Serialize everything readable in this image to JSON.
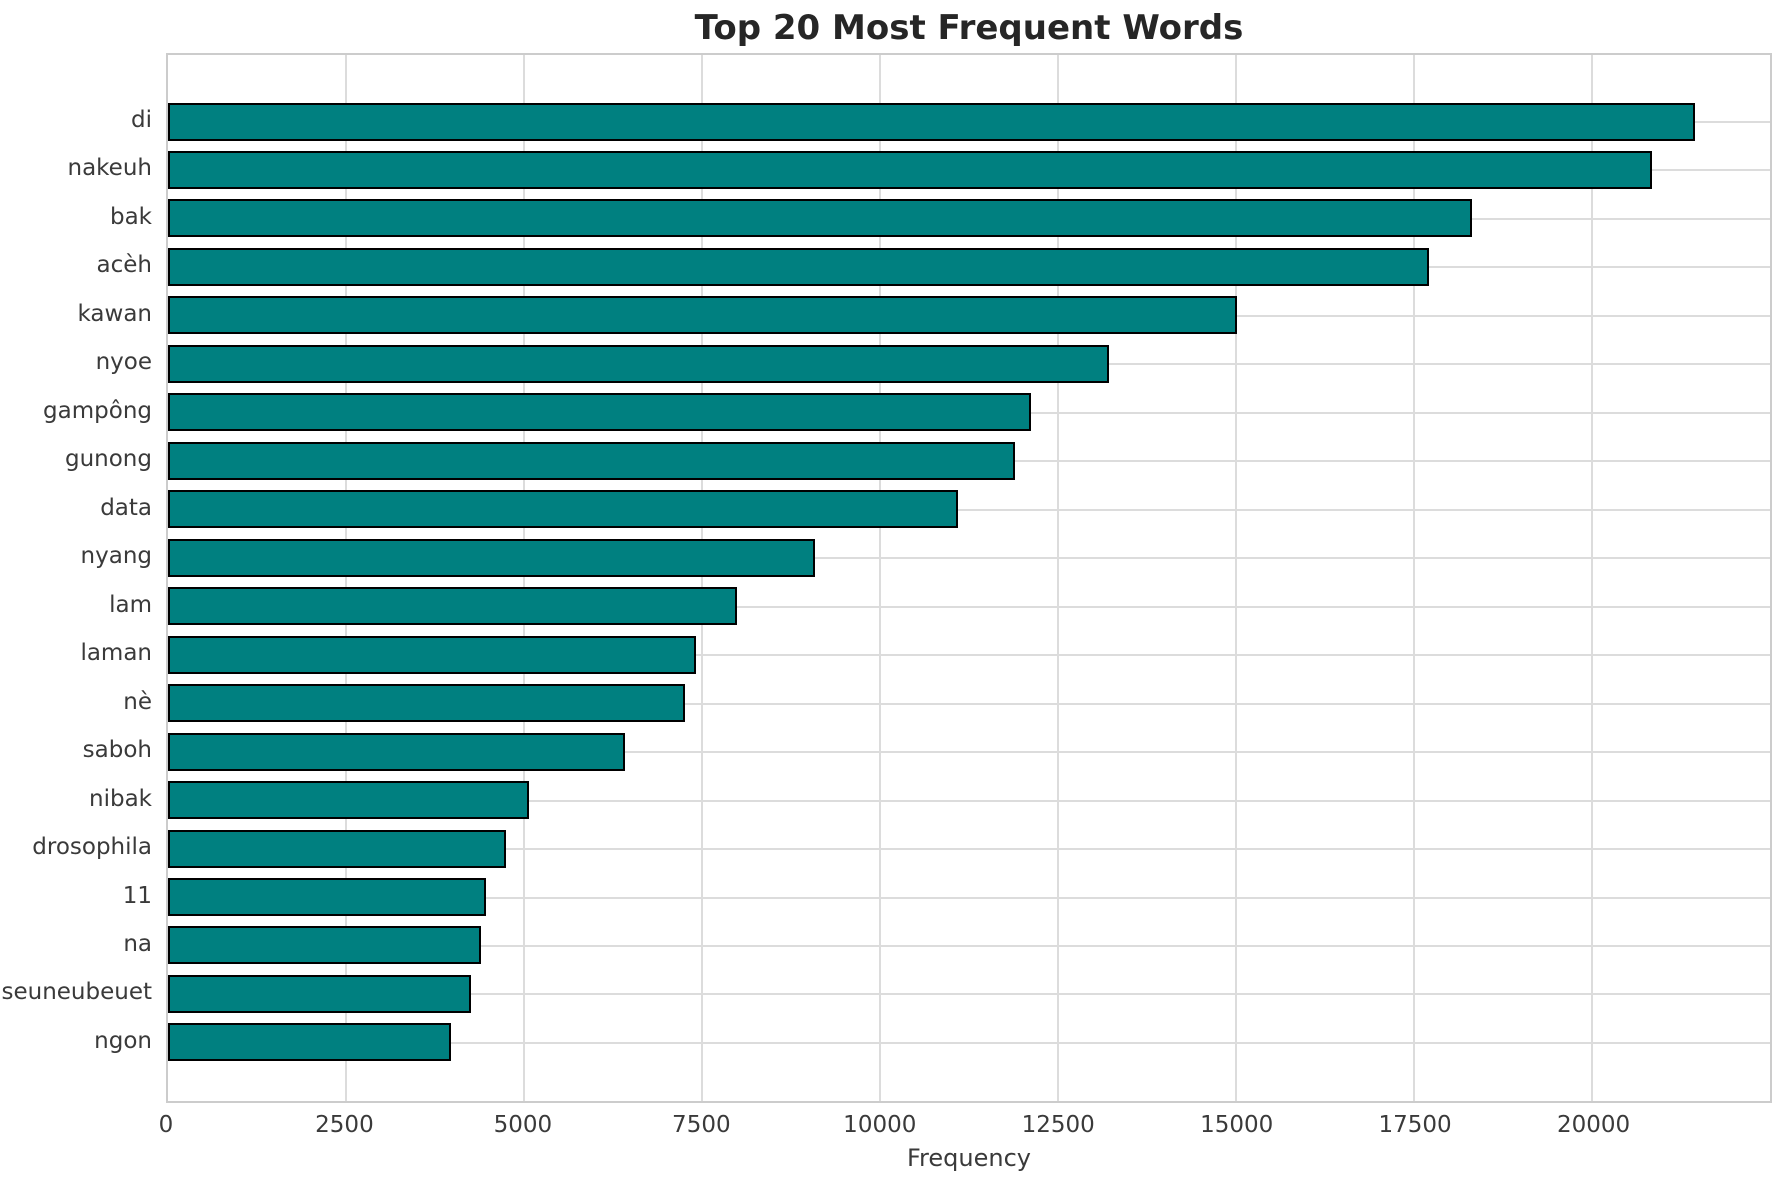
{
  "chart_data": {
    "type": "bar",
    "orientation": "horizontal",
    "title": "Top 20 Most Frequent Words",
    "xlabel": "Frequency",
    "ylabel": "",
    "categories": [
      "di",
      "nakeuh",
      "bak",
      "acèh",
      "kawan",
      "nyoe",
      "gampông",
      "gunong",
      "data",
      "nyang",
      "lam",
      "laman",
      "nè",
      "saboh",
      "nibak",
      "drosophila",
      "11",
      "na",
      "seuneubeuet",
      "ngon"
    ],
    "values": [
      21430,
      20820,
      18300,
      17690,
      14990,
      13190,
      12100,
      11870,
      11080,
      9060,
      7970,
      7390,
      7240,
      6400,
      5050,
      4730,
      4450,
      4380,
      4240,
      3950
    ],
    "xlim": [
      0,
      22500
    ],
    "xticks": [
      0,
      2500,
      5000,
      7500,
      10000,
      12500,
      15000,
      17500,
      20000
    ],
    "grid": true,
    "legend": "none",
    "bar_color": "#008080",
    "bar_edge_color": "#000000",
    "gridline_color": "#dcdcdc",
    "spine_color": "#cccccc",
    "background_color": "#ffffff",
    "tick_label_color": "#3a3a3a",
    "title_color": "#262626"
  }
}
